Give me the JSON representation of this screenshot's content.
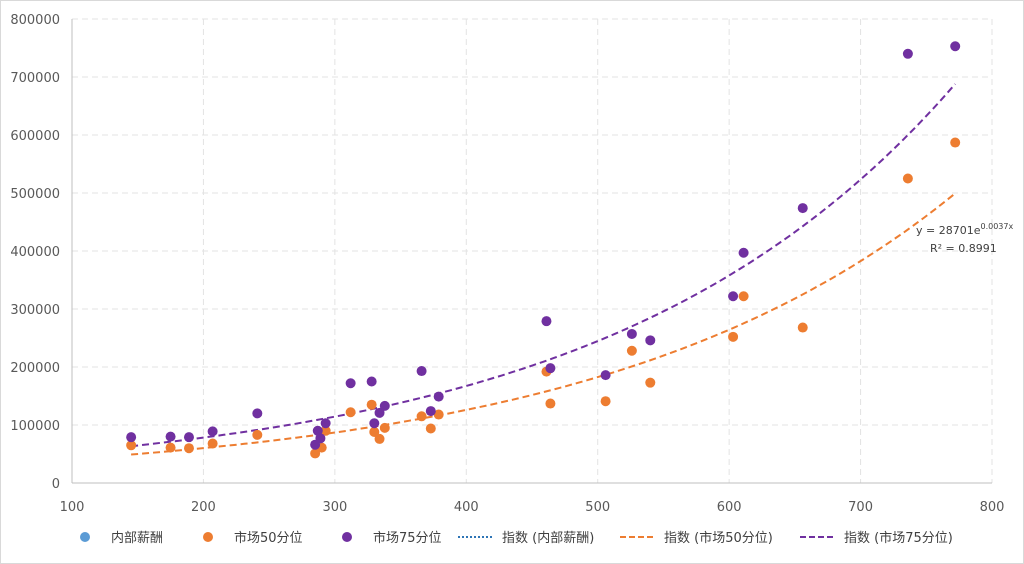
{
  "chart_data": {
    "type": "scatter",
    "xlim": [
      100,
      800
    ],
    "ylim": [
      0,
      800000
    ],
    "x_ticks": [
      100,
      200,
      300,
      400,
      500,
      600,
      700,
      800
    ],
    "y_ticks": [
      0,
      100000,
      200000,
      300000,
      400000,
      500000,
      600000,
      700000,
      800000
    ],
    "grid": "dashed",
    "legend_position": "bottom",
    "series": [
      {
        "name": "内部薪酬",
        "color": "#5b9bd5",
        "points": []
      },
      {
        "name": "市场50分位",
        "color": "#ed7d31",
        "points": [
          [
            145,
            65000
          ],
          [
            175,
            61000
          ],
          [
            189,
            60000
          ],
          [
            207,
            68000
          ],
          [
            241,
            83000
          ],
          [
            285,
            51000
          ],
          [
            290,
            61000
          ],
          [
            293,
            90000
          ],
          [
            312,
            122000
          ],
          [
            328,
            135000
          ],
          [
            330,
            88000
          ],
          [
            334,
            76000
          ],
          [
            338,
            95000
          ],
          [
            366,
            115000
          ],
          [
            373,
            94000
          ],
          [
            379,
            118000
          ],
          [
            461,
            192000
          ],
          [
            464,
            137000
          ],
          [
            506,
            141000
          ],
          [
            526,
            228000
          ],
          [
            540,
            173000
          ],
          [
            603,
            252000
          ],
          [
            611,
            322000
          ],
          [
            656,
            268000
          ],
          [
            736,
            525000
          ],
          [
            772,
            587000
          ]
        ]
      },
      {
        "name": "市场75分位",
        "color": "#7030a0",
        "points": [
          [
            145,
            79000
          ],
          [
            175,
            80000
          ],
          [
            189,
            79000
          ],
          [
            207,
            89000
          ],
          [
            241,
            120000
          ],
          [
            285,
            66000
          ],
          [
            287,
            90000
          ],
          [
            289,
            77000
          ],
          [
            293,
            103000
          ],
          [
            312,
            172000
          ],
          [
            328,
            175000
          ],
          [
            330,
            103000
          ],
          [
            334,
            121000
          ],
          [
            338,
            133000
          ],
          [
            366,
            193000
          ],
          [
            373,
            124000
          ],
          [
            379,
            149000
          ],
          [
            461,
            279000
          ],
          [
            464,
            198000
          ],
          [
            506,
            186000
          ],
          [
            526,
            257000
          ],
          [
            540,
            246000
          ],
          [
            603,
            322000
          ],
          [
            611,
            397000
          ],
          [
            656,
            474000
          ],
          [
            736,
            740000
          ],
          [
            772,
            753000
          ]
        ]
      }
    ],
    "trendlines": [
      {
        "name": "指数 (内部薪酬)",
        "type": "exponential",
        "color": "#2e75b6",
        "style": "dotted",
        "points": []
      },
      {
        "name": "指数 (市场50分位)",
        "type": "exponential",
        "color": "#ed7d31",
        "style": "dashed",
        "a": 28701,
        "b": 0.0037,
        "x_range": [
          145,
          772
        ]
      },
      {
        "name": "指数 (市场75分位)",
        "type": "exponential",
        "color": "#7030a0",
        "style": "dashed",
        "a": 36600,
        "b": 0.0038,
        "x_range": [
          145,
          772
        ]
      }
    ],
    "annotations": {
      "equation_base": "y = 28701e",
      "equation_exp": "0.0037x",
      "r_squared": "R² = 0.8991"
    }
  }
}
